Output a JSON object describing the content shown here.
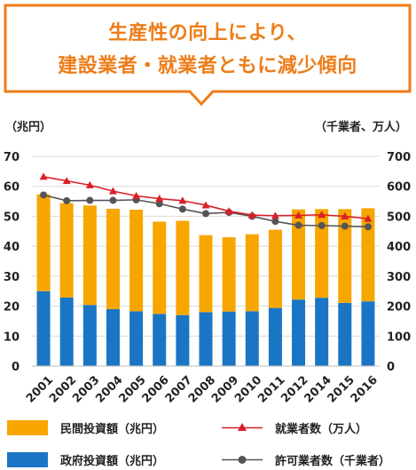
{
  "headline": {
    "line1": "生産性の向上により、",
    "line2": "建設業者・就業者ともに減少傾向"
  },
  "colors": {
    "accent": "#ee7d19",
    "private_bar": "#f7a600",
    "government_bar": "#1a76c4",
    "workers_line": "#d92028",
    "permits_line": "#555555"
  },
  "units": {
    "left": "（兆円）",
    "right": "（千業者、万人）"
  },
  "legend": {
    "private": "民間投資額（兆円）",
    "government": "政府投資額（兆円）",
    "workers": "就業者数（万人）",
    "permits": "許可業者数（千業者）"
  },
  "chart_data": {
    "type": "bar",
    "categories": [
      "2001",
      "2002",
      "2003",
      "2004",
      "2005",
      "2006",
      "2007",
      "2008",
      "2009",
      "2010",
      "2011",
      "2012",
      "2014",
      "2015",
      "2016"
    ],
    "y_left": {
      "min": 0,
      "max": 70,
      "ticks": [
        0,
        10,
        20,
        30,
        40,
        50,
        60,
        70
      ]
    },
    "y_right": {
      "min": 0,
      "max": 700,
      "ticks": [
        0,
        100,
        200,
        300,
        400,
        500,
        600,
        700
      ]
    },
    "stacked": true,
    "series": [
      {
        "name": "政府投資額（兆円）",
        "kind": "bar",
        "axis": "left",
        "values": [
          25.0,
          22.9,
          20.4,
          19.0,
          18.3,
          17.4,
          17.0,
          18.0,
          18.2,
          18.3,
          19.4,
          22.2,
          22.8,
          21.1,
          21.6
        ]
      },
      {
        "name": "民間投資額（兆円）",
        "kind": "bar",
        "axis": "left",
        "values": [
          32.3,
          31.5,
          33.2,
          33.5,
          33.9,
          30.8,
          31.5,
          25.7,
          24.8,
          25.7,
          26.1,
          30.1,
          29.6,
          31.3,
          31.1
        ]
      },
      {
        "name": "就業者数（万人）",
        "kind": "line",
        "axis": "right",
        "marker": "triangle",
        "values": [
          632,
          618,
          604,
          584,
          568,
          559,
          552,
          537,
          517,
          504,
          502,
          503,
          505,
          500,
          492
        ]
      },
      {
        "name": "許可業者数（千業者）",
        "kind": "line",
        "axis": "right",
        "marker": "circle",
        "values": [
          571,
          552,
          553,
          553,
          555,
          542,
          524,
          509,
          513,
          500,
          483,
          470,
          469,
          467,
          465
        ]
      }
    ]
  }
}
